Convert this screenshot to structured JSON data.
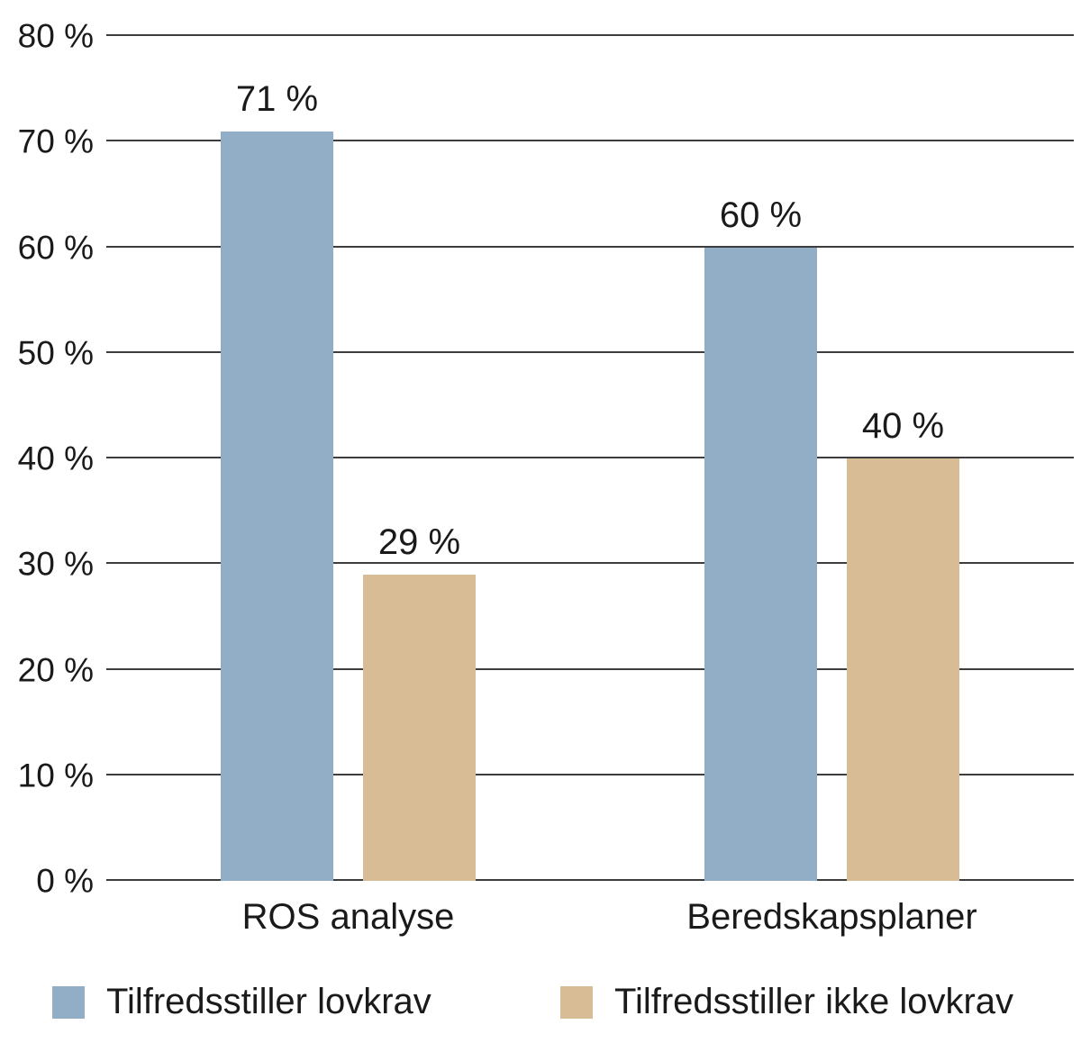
{
  "chart_data": {
    "type": "bar",
    "title": "",
    "categories": [
      "ROS analyse",
      "Beredskapsplaner"
    ],
    "series": [
      {
        "name": "Tilfredsstiller lovkrav",
        "color": "#92aec7",
        "values": [
          71,
          60
        ],
        "value_labels": [
          "71 %",
          "60 %"
        ]
      },
      {
        "name": "Tilfredsstiller ikke lovkrav",
        "color": "#d8bc95",
        "values": [
          29,
          40
        ],
        "value_labels": [
          "29 %",
          "40 %"
        ]
      }
    ],
    "xlabel": "",
    "ylabel": "",
    "ylim": [
      0,
      80
    ],
    "ytick_step": 10,
    "ytick_labels": [
      "0 %",
      "10 %",
      "20 %",
      "30 %",
      "40 %",
      "50 %",
      "60 %",
      "70 %",
      "80 %"
    ],
    "grid": true,
    "gridline_color": "#3d3d3d",
    "background_color": "#ffffff",
    "legend_position": "bottom"
  }
}
